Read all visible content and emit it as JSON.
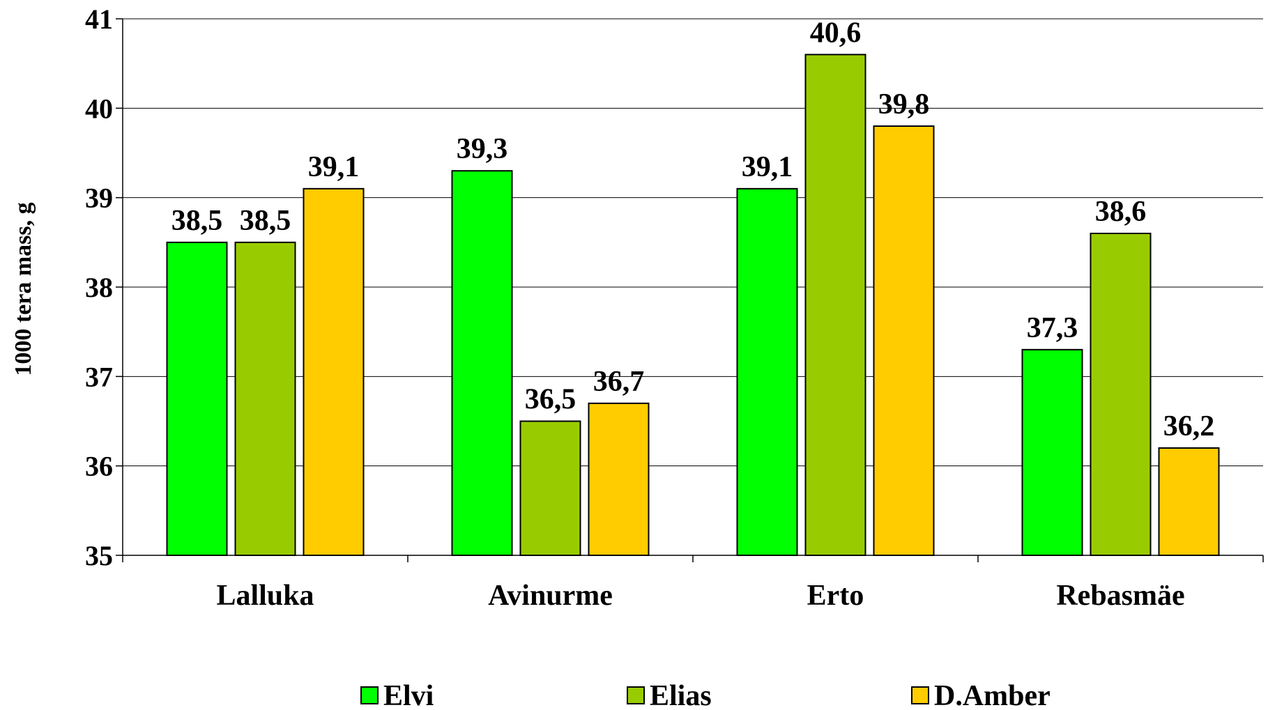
{
  "chart_data": {
    "type": "bar",
    "title": "",
    "xlabel": "",
    "ylabel": "1000 tera mass, g",
    "ylim": [
      35,
      41
    ],
    "yticks": [
      "35",
      "36",
      "37",
      "38",
      "39",
      "40",
      "41"
    ],
    "grid": true,
    "legend_position": "bottom",
    "categories": [
      "Lalluka",
      "Avinurme",
      "Erto",
      "Rebasmäe"
    ],
    "series": [
      {
        "name": "Elvi",
        "color": "#00ff00",
        "values": [
          38.5,
          39.3,
          39.1,
          37.3
        ],
        "labels": [
          "38,5",
          "39,3",
          "39,1",
          "37,3"
        ]
      },
      {
        "name": "Elias",
        "color": "#99cc00",
        "values": [
          38.5,
          36.5,
          40.6,
          38.6
        ],
        "labels": [
          "38,5",
          "36,5",
          "40,6",
          "38,6"
        ]
      },
      {
        "name": "D.Amber",
        "color": "#ffcc00",
        "values": [
          39.1,
          36.7,
          39.8,
          36.2
        ],
        "labels": [
          "39,1",
          "36,7",
          "39,8",
          "36,2"
        ]
      }
    ]
  }
}
